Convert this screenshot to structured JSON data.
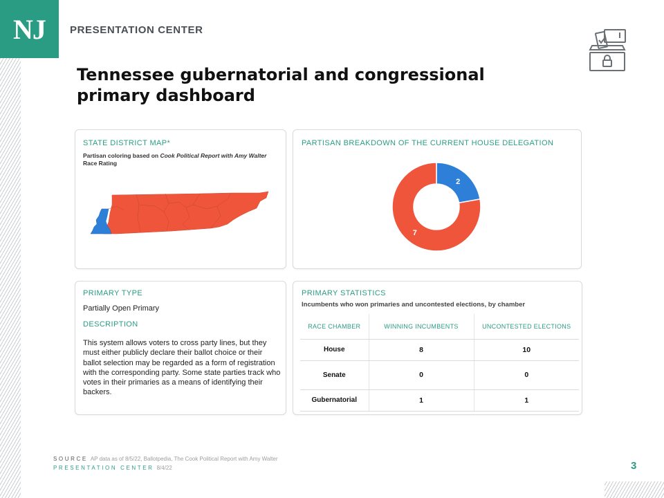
{
  "header": {
    "logo_text": "NJ",
    "brand_name": "PRESENTATION CENTER",
    "title": "Tennessee gubernatorial and congressional primary dashboard"
  },
  "colors": {
    "accent": "#2b9c84",
    "republican": "#ee553b",
    "democrat": "#2d7fd8"
  },
  "map_card": {
    "title": "STATE DISTRICT MAP*",
    "note_plain": "Partisan coloring based on ",
    "note_italic_1": "Cook Political Report with Amy",
    "note_italic_2": "Walter",
    "note_tail": " Race Rating"
  },
  "partisan_card": {
    "title": "PARTISAN BREAKDOWN OF THE CURRENT HOUSE DELEGATION"
  },
  "chart_data": {
    "type": "pie",
    "variant": "donut",
    "title": "PARTISAN BREAKDOWN OF THE CURRENT HOUSE DELEGATION",
    "slices": [
      {
        "label": "2",
        "value": 2,
        "color": "#2d7fd8"
      },
      {
        "label": "7",
        "value": 7,
        "color": "#ee553b"
      }
    ]
  },
  "type_card": {
    "title": "PRIMARY TYPE",
    "value": "Partially Open Primary",
    "desc_title": "DESCRIPTION",
    "description": "This system allows voters to cross party lines, but they must either publicly declare their ballot choice or their ballot selection may be regarded as a form of registration with the corresponding party. Some state parties track who votes in their primaries as a means of identifying their backers."
  },
  "stats_card": {
    "title": "PRIMARY STATISTICS",
    "subtitle": "Incumbents who won primaries and uncontested elections, by chamber",
    "headers": [
      "RACE CHAMBER",
      "WINNING INCUMBENTS",
      "UNCONTESTED ELECTIONS"
    ],
    "rows": [
      [
        "House",
        "8",
        "10"
      ],
      [
        "Senate",
        "0",
        "0"
      ],
      [
        "Gubernatorial",
        "1",
        "1"
      ]
    ]
  },
  "footer": {
    "source_label": "SOURCE",
    "source_text": "AP data as of 8/5/22, Ballotpedia, The Cook Political Report with Amy Walter",
    "presented_label": "PRESENTATION CENTER",
    "presented_date": "8/4/22",
    "page_number": "3"
  },
  "icons": [
    "ballot-box-icon"
  ]
}
